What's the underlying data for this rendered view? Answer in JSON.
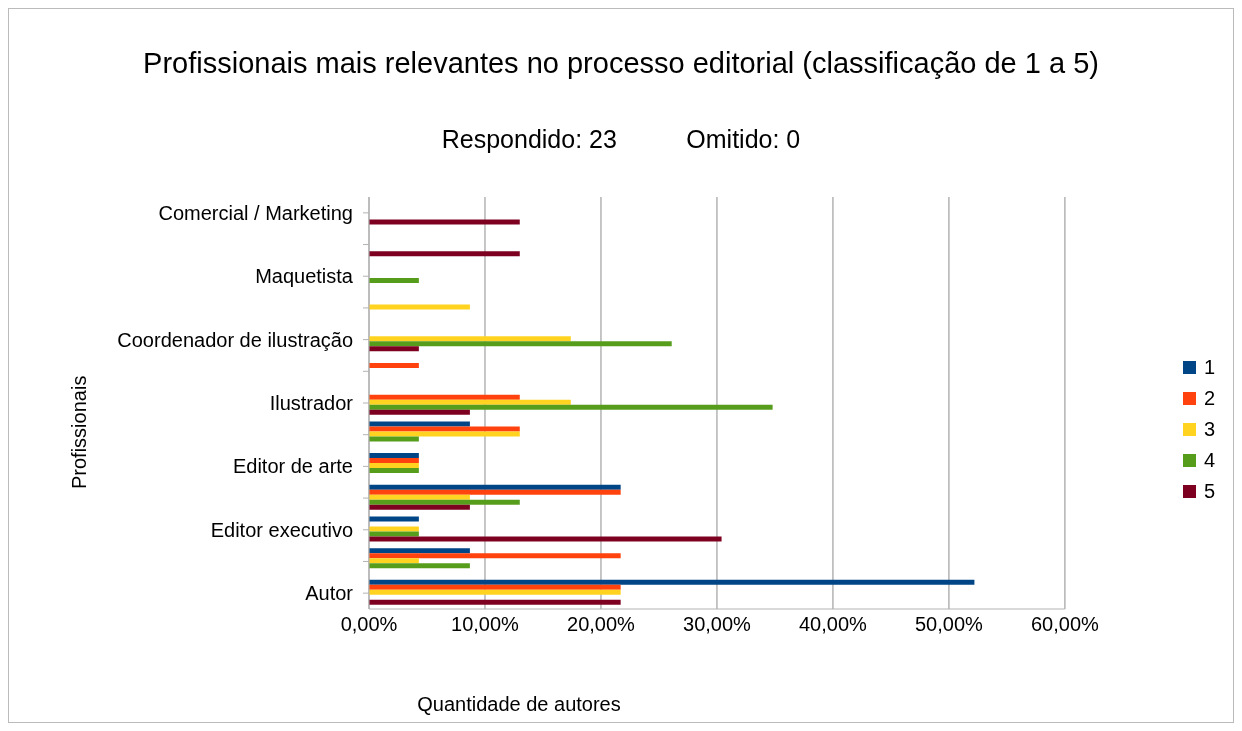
{
  "chart_data": {
    "type": "bar",
    "orientation": "horizontal",
    "title": "Profissionais mais relevantes no processo editorial (classificação de 1 a 5)",
    "subtitle": "Respondido: 23          Omitido: 0",
    "xlabel": "Quantidade de autores",
    "ylabel": "Profissionais",
    "categories": [
      "Comercial / Marketing",
      null,
      "Maquetista",
      null,
      "Coordenador de ilustração",
      null,
      "Ilustrador",
      null,
      "Editor de arte",
      null,
      "Editor executivo",
      null,
      "Autor"
    ],
    "series": [
      {
        "name": "1",
        "color": "#004586",
        "values": [
          0,
          0,
          0,
          0,
          0,
          0,
          0,
          8.7,
          4.3,
          21.7,
          4.3,
          8.7,
          52.2
        ]
      },
      {
        "name": "2",
        "color": "#ff420e",
        "values": [
          0,
          0,
          0,
          0,
          0,
          4.3,
          13.0,
          13.0,
          4.3,
          21.7,
          0,
          21.7,
          21.7
        ]
      },
      {
        "name": "3",
        "color": "#ffd320",
        "values": [
          0,
          0,
          0,
          8.7,
          17.4,
          0,
          17.4,
          13.0,
          4.3,
          8.7,
          4.3,
          4.3,
          21.7
        ]
      },
      {
        "name": "4",
        "color": "#579d1c",
        "values": [
          0,
          0,
          4.3,
          0,
          26.1,
          0,
          34.8,
          4.3,
          4.3,
          13.0,
          4.3,
          8.7,
          0
        ]
      },
      {
        "name": "5",
        "color": "#7e0021",
        "values": [
          13.0,
          13.0,
          0,
          0,
          4.3,
          0,
          8.7,
          0,
          0,
          8.7,
          30.4,
          0,
          21.7
        ]
      }
    ],
    "xlim": [
      0,
      60
    ],
    "xticks": [
      {
        "value": 0,
        "label": "0,00%"
      },
      {
        "value": 10,
        "label": "10,00%"
      },
      {
        "value": 20,
        "label": "20,00%"
      },
      {
        "value": 30,
        "label": "30,00%"
      },
      {
        "value": 40,
        "label": "40,00%"
      },
      {
        "value": 50,
        "label": "50,00%"
      },
      {
        "value": 60,
        "label": "60,00%"
      }
    ],
    "grid": "x",
    "legend": "right"
  }
}
